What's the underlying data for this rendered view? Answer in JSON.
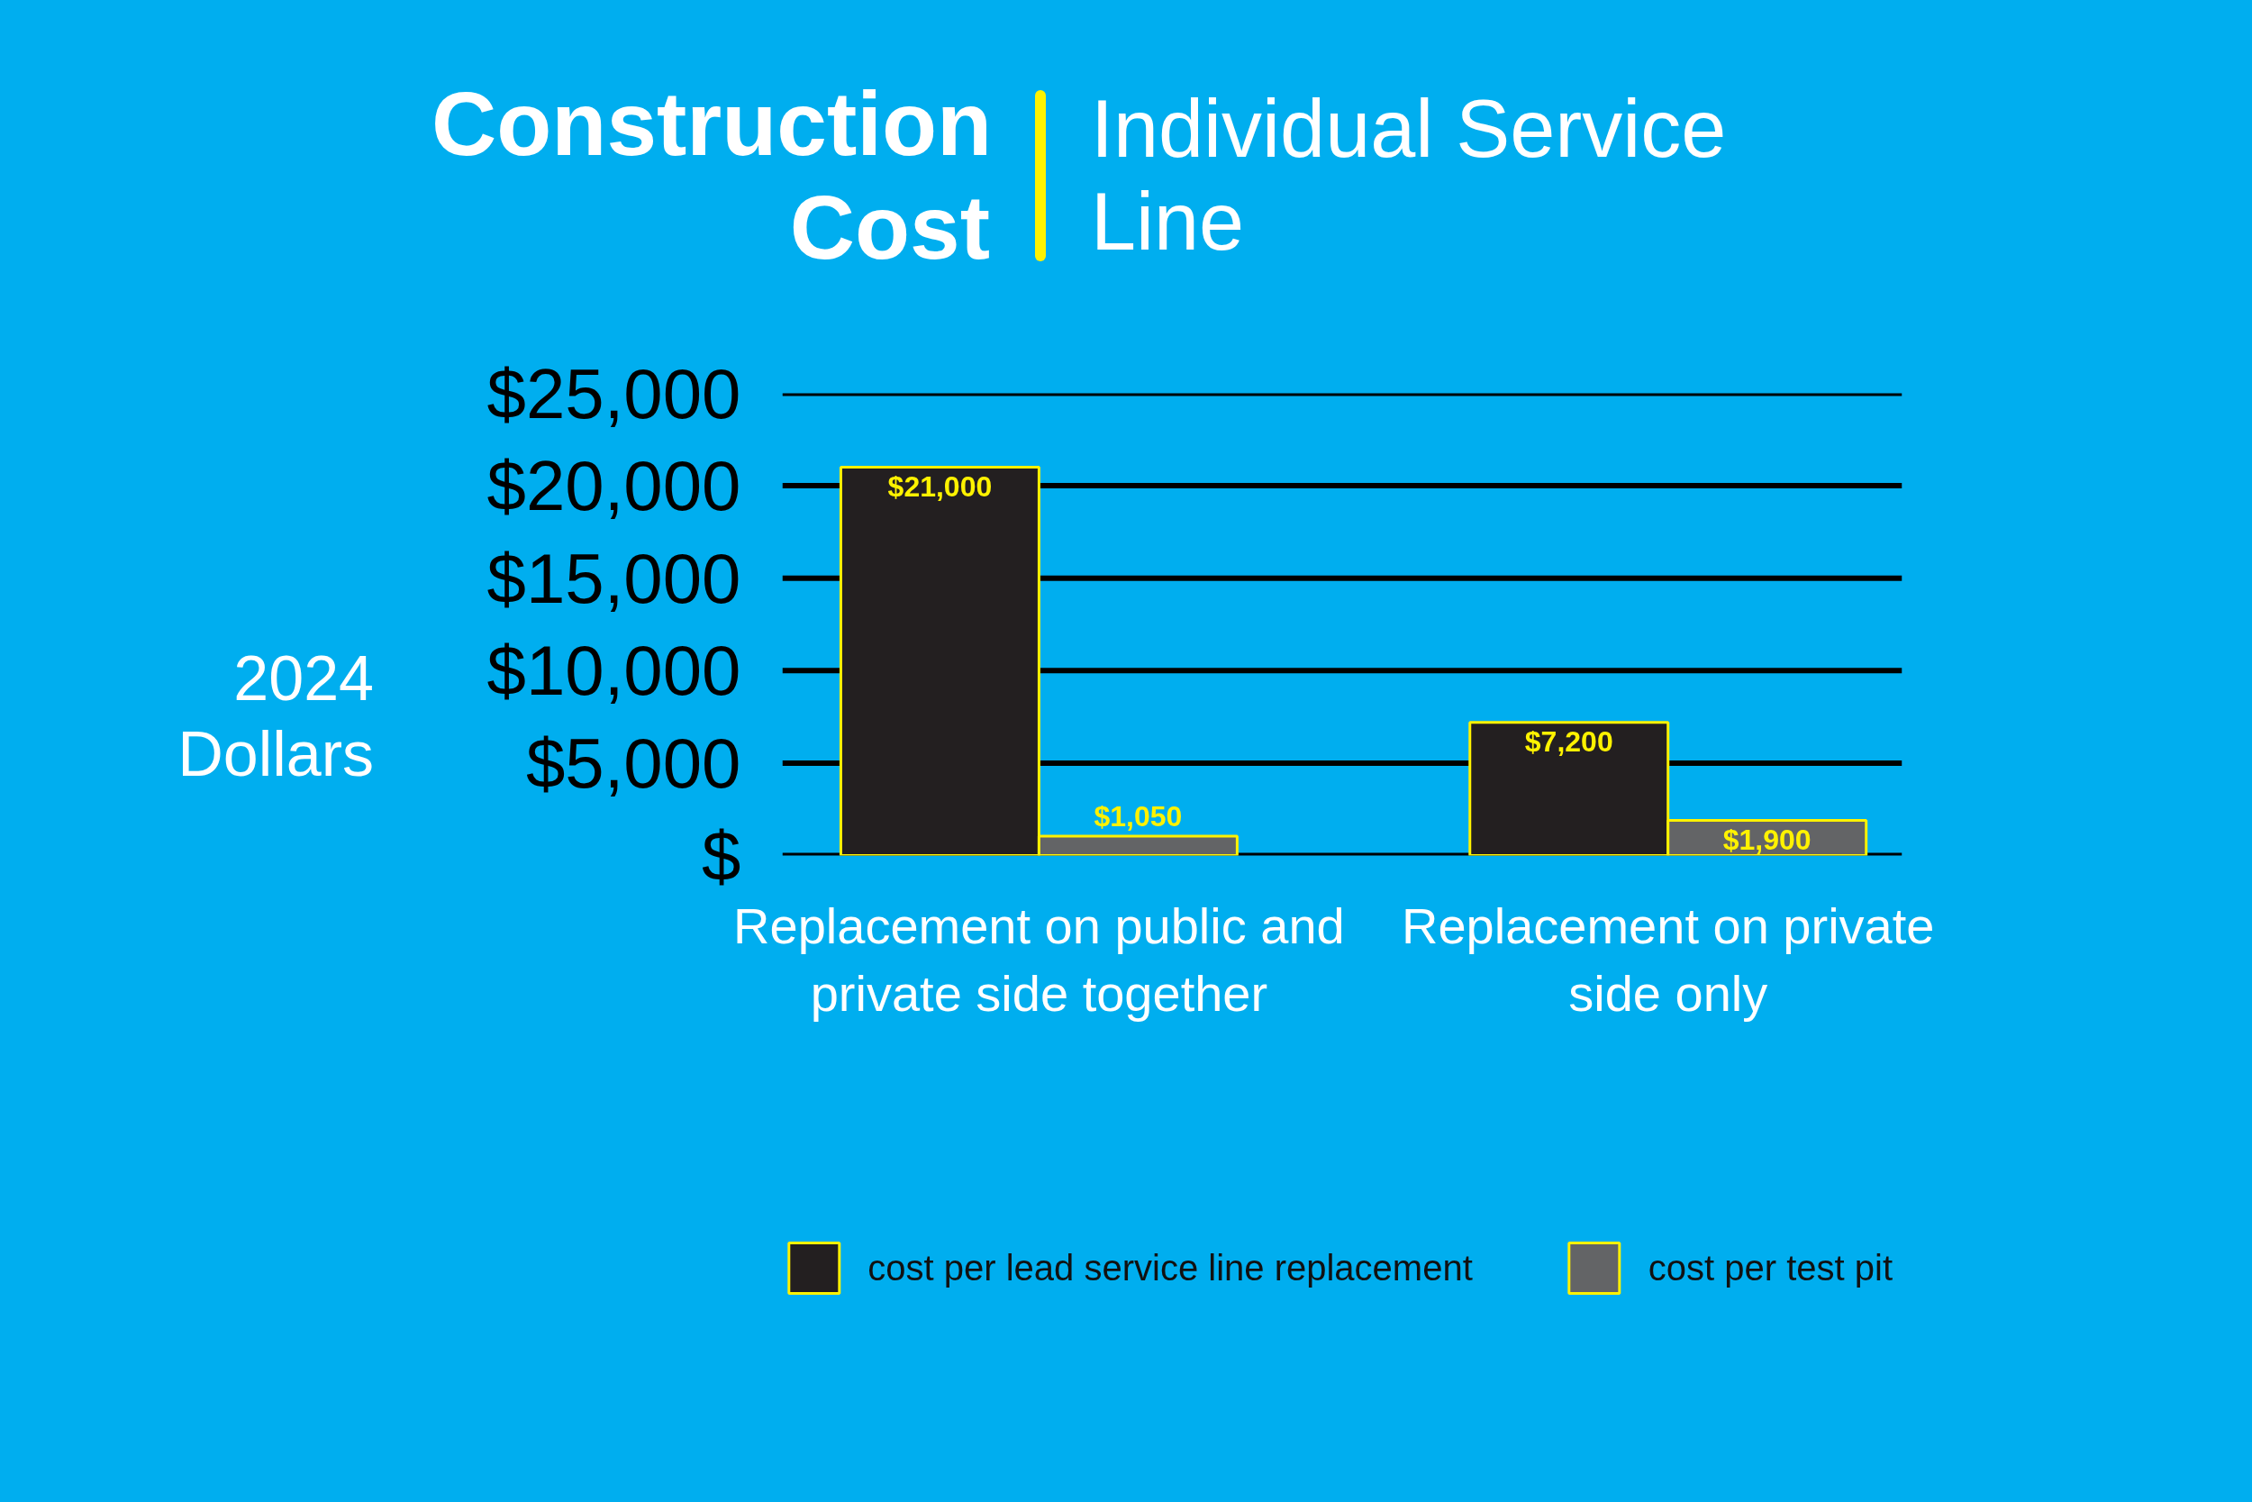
{
  "chart_data": {
    "type": "bar",
    "title": "Construction Cost",
    "subtitle": "Individual Service Line",
    "ylabel": "2024 Dollars",
    "categories": [
      "Replacement on public and private side together",
      "Replacement on private side only"
    ],
    "series": [
      {
        "name": "cost per lead service line replacement",
        "color": "#231f20",
        "values": [
          21000,
          7200
        ]
      },
      {
        "name": "cost per test pit",
        "color": "#636466",
        "values": [
          1050,
          1900
        ]
      }
    ],
    "ylim": [
      0,
      25000
    ],
    "yticks": [
      {
        "value": 0,
        "label": "$"
      },
      {
        "value": 5000,
        "label": "$5,000"
      },
      {
        "value": 10000,
        "label": "$10,000"
      },
      {
        "value": 15000,
        "label": "$15,000"
      },
      {
        "value": 20000,
        "label": "$20,000"
      },
      {
        "value": 25000,
        "label": "$25,000"
      }
    ],
    "grid": "y",
    "legend": "bottom",
    "value_labels": [
      [
        "$21,000",
        "$7,200"
      ],
      [
        "$1,050",
        "$1,900"
      ]
    ]
  }
}
